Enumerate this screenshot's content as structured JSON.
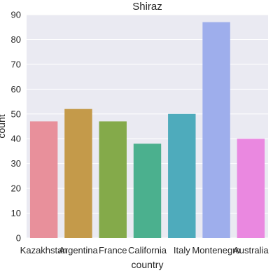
{
  "chart_data": {
    "type": "bar",
    "title": "Shiraz",
    "xlabel": "country",
    "ylabel": "count",
    "categories": [
      "Kazakhstan",
      "Argentina",
      "France",
      "California",
      "Italy",
      "Montenegro",
      "Australia"
    ],
    "values": [
      47,
      52,
      47,
      38,
      50,
      87,
      40
    ],
    "colors": [
      "#e8909b",
      "#c49a4a",
      "#84aa4a",
      "#4bb08e",
      "#4eabbc",
      "#9eaeec",
      "#ea88e0"
    ],
    "ylim": [
      0,
      90
    ],
    "yticks": [
      0,
      10,
      20,
      30,
      40,
      50,
      60,
      70,
      80,
      90
    ],
    "grid": true,
    "background_color": "#eaeaf2",
    "grid_color": "#ffffff"
  }
}
